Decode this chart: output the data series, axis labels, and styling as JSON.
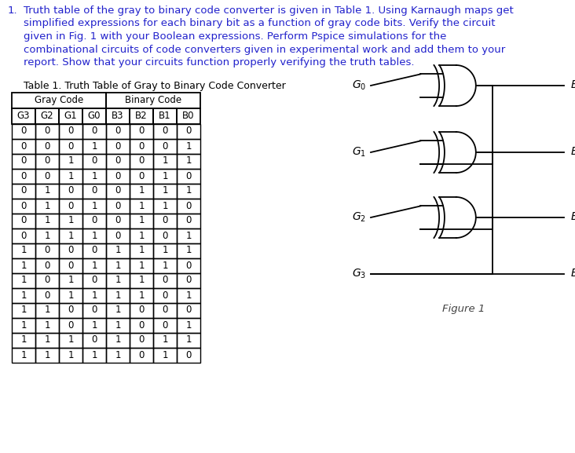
{
  "table_caption": "Table 1. Truth Table of Gray to Binary Code Converter",
  "col_headers": [
    "G3",
    "G2",
    "G1",
    "G0",
    "B3",
    "B2",
    "B1",
    "B0"
  ],
  "table_data": [
    [
      0,
      0,
      0,
      0,
      0,
      0,
      0,
      0
    ],
    [
      0,
      0,
      0,
      1,
      0,
      0,
      0,
      1
    ],
    [
      0,
      0,
      1,
      0,
      0,
      0,
      1,
      1
    ],
    [
      0,
      0,
      1,
      1,
      0,
      0,
      1,
      0
    ],
    [
      0,
      1,
      0,
      0,
      0,
      1,
      1,
      1
    ],
    [
      0,
      1,
      0,
      1,
      0,
      1,
      1,
      0
    ],
    [
      0,
      1,
      1,
      0,
      0,
      1,
      0,
      0
    ],
    [
      0,
      1,
      1,
      1,
      0,
      1,
      0,
      1
    ],
    [
      1,
      0,
      0,
      0,
      1,
      1,
      1,
      1
    ],
    [
      1,
      0,
      0,
      1,
      1,
      1,
      1,
      0
    ],
    [
      1,
      0,
      1,
      0,
      1,
      1,
      0,
      0
    ],
    [
      1,
      0,
      1,
      1,
      1,
      1,
      0,
      1
    ],
    [
      1,
      1,
      0,
      0,
      1,
      0,
      0,
      0
    ],
    [
      1,
      1,
      0,
      1,
      1,
      0,
      0,
      1
    ],
    [
      1,
      1,
      1,
      0,
      1,
      0,
      1,
      1
    ],
    [
      1,
      1,
      1,
      1,
      1,
      0,
      1,
      0
    ]
  ],
  "background_color": "#ffffff",
  "text_color": "#000000",
  "blue_color": "#2222cc",
  "figure_caption": "Figure 1",
  "para_lines": [
    "Truth table of the gray to binary code converter is given in Table 1. Using Karnaugh maps get",
    "simplified expressions for each binary bit as a function of gray code bits. Verify the circuit",
    "given in Fig. 1 with your Boolean expressions. Perform Pspice simulations for the",
    "combinational circuits of code converters given in experimental work and add them to your",
    "report. Show that your circuits function properly verifying the truth tables."
  ]
}
